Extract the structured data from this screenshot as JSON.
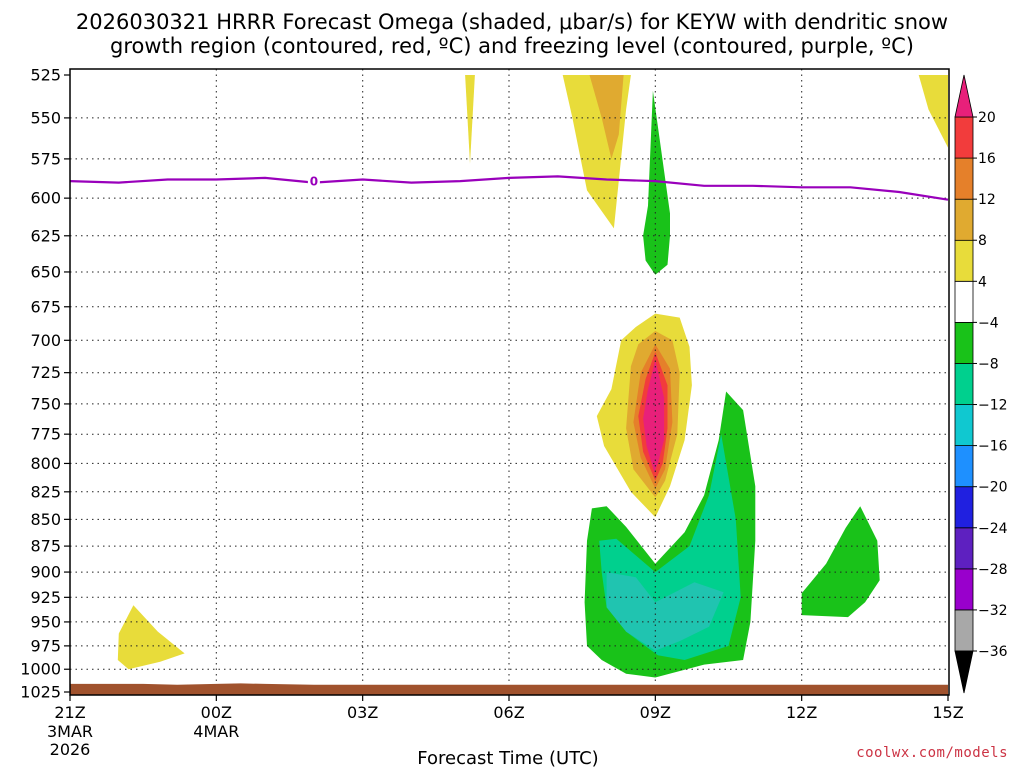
{
  "title": {
    "line1": "2026030321 HRRR Forecast Omega (shaded, μbar/s) for KEYW with dendritic snow",
    "line2": "growth region (contoured, red, ºC) and freezing level (contoured, purple, ºC)"
  },
  "credit": "coolwx.com/models",
  "colors": {
    "yellow": "#e8dc3a",
    "gold": "#e0aa30",
    "orange": "#e5802a",
    "red": "#f23c3c",
    "magenta": "#e8207a",
    "green": "#19c219",
    "mint": "#00d08e",
    "teal": "#20c4b0",
    "freezing_line": "#9900bb",
    "ground": "#a0522d"
  },
  "chart_data": {
    "type": "heatmap",
    "title": "2026030321 HRRR Forecast Omega (shaded, μbar/s) for KEYW with dendritic snow growth region (contoured, red, ºC) and freezing level (contoured, purple, ºC)",
    "xlabel": "Forecast Time (UTC)",
    "ylabel": "Pressure (mb)",
    "xlim_hours": [
      0,
      18
    ],
    "ylim_mb": [
      1025,
      525
    ],
    "x_ticks": [
      {
        "hour": 0,
        "label": "21Z",
        "sub1": "3MAR",
        "sub2": "2026"
      },
      {
        "hour": 3,
        "label": "00Z",
        "sub1": "4MAR",
        "sub2": ""
      },
      {
        "hour": 6,
        "label": "03Z",
        "sub1": "",
        "sub2": ""
      },
      {
        "hour": 9,
        "label": "06Z",
        "sub1": "",
        "sub2": ""
      },
      {
        "hour": 12,
        "label": "09Z",
        "sub1": "",
        "sub2": ""
      },
      {
        "hour": 15,
        "label": "12Z",
        "sub1": "",
        "sub2": ""
      },
      {
        "hour": 18,
        "label": "15Z",
        "sub1": "",
        "sub2": ""
      }
    ],
    "y_ticks": [
      525,
      550,
      575,
      600,
      625,
      650,
      675,
      700,
      725,
      750,
      775,
      800,
      825,
      850,
      875,
      900,
      925,
      950,
      975,
      1000,
      1025
    ],
    "colorbar": {
      "levels": [
        -36,
        -32,
        -28,
        -24,
        -20,
        -16,
        -12,
        -8,
        -4,
        4,
        8,
        12,
        16,
        20
      ],
      "colors": [
        "#a8a8a8",
        "#9900cc",
        "#5e20c0",
        "#2020e0",
        "#1e90ff",
        "#10c8d0",
        "#00d08e",
        "#19c219",
        "#ffffff",
        "#e8dc3a",
        "#e0aa30",
        "#e5802a",
        "#f23c3c",
        "#e8207a"
      ],
      "below_color": "#000000",
      "above_color": "#e8207a"
    },
    "freezing_level": {
      "label": "0",
      "points": [
        [
          0,
          589
        ],
        [
          1,
          590
        ],
        [
          2,
          588
        ],
        [
          3,
          588
        ],
        [
          4,
          587
        ],
        [
          5,
          590
        ],
        [
          6,
          588
        ],
        [
          7,
          590
        ],
        [
          8,
          589
        ],
        [
          9,
          587
        ],
        [
          10,
          586
        ],
        [
          11,
          588
        ],
        [
          12,
          589
        ],
        [
          13,
          592
        ],
        [
          14,
          592
        ],
        [
          15,
          593
        ],
        [
          16,
          593
        ],
        [
          17,
          596
        ],
        [
          18,
          601
        ]
      ]
    },
    "regions": [
      {
        "name": "rising-yellow-top-a",
        "level": 4,
        "color": "yellow",
        "points": [
          [
            8.1,
            525
          ],
          [
            8.3,
            525
          ],
          [
            8.2,
            578
          ]
        ]
      },
      {
        "name": "rising-yellow-top-b",
        "level": 4,
        "color": "yellow",
        "points": [
          [
            10.1,
            525
          ],
          [
            11.5,
            525
          ],
          [
            11.4,
            545
          ],
          [
            11.15,
            620
          ],
          [
            10.6,
            595
          ],
          [
            10.3,
            550
          ]
        ]
      },
      {
        "name": "rising-gold-top",
        "level": 8,
        "color": "gold",
        "points": [
          [
            10.65,
            525
          ],
          [
            11.35,
            525
          ],
          [
            11.25,
            560
          ],
          [
            11.1,
            575
          ],
          [
            10.9,
            550
          ]
        ]
      },
      {
        "name": "rising-yellow-right-top",
        "level": 4,
        "color": "yellow",
        "points": [
          [
            17.4,
            525
          ],
          [
            18,
            525
          ],
          [
            18,
            568
          ],
          [
            17.6,
            545
          ]
        ]
      },
      {
        "name": "sinking-green-top",
        "level": -4,
        "color": "green",
        "points": [
          [
            11.95,
            534
          ],
          [
            12.3,
            610
          ],
          [
            12.3,
            625
          ],
          [
            12.25,
            645
          ],
          [
            12.0,
            652
          ],
          [
            11.8,
            642
          ],
          [
            11.75,
            625
          ],
          [
            11.85,
            605
          ]
        ]
      },
      {
        "name": "sinking-green-low",
        "level": -4,
        "color": "green",
        "points": [
          [
            10.7,
            840
          ],
          [
            11.0,
            838
          ],
          [
            11.4,
            857
          ],
          [
            12.0,
            892
          ],
          [
            12.6,
            862
          ],
          [
            13.0,
            828
          ],
          [
            13.3,
            780
          ],
          [
            13.45,
            740
          ],
          [
            13.8,
            755
          ],
          [
            14.05,
            820
          ],
          [
            14.05,
            870
          ],
          [
            13.95,
            950
          ],
          [
            13.8,
            990
          ],
          [
            13.0,
            995
          ],
          [
            12.0,
            1009
          ],
          [
            11.4,
            1005
          ],
          [
            10.9,
            990
          ],
          [
            10.6,
            975
          ],
          [
            10.55,
            930
          ],
          [
            10.6,
            870
          ]
        ]
      },
      {
        "name": "sinking-mint-low",
        "level": -8,
        "color": "mint",
        "points": [
          [
            10.85,
            870
          ],
          [
            11.2,
            868
          ],
          [
            12.0,
            900
          ],
          [
            12.7,
            875
          ],
          [
            13.1,
            828
          ],
          [
            13.35,
            775
          ],
          [
            13.65,
            850
          ],
          [
            13.75,
            925
          ],
          [
            13.5,
            975
          ],
          [
            12.6,
            990
          ],
          [
            12.05,
            985
          ],
          [
            11.4,
            960
          ],
          [
            11.0,
            935
          ],
          [
            10.9,
            900
          ]
        ]
      },
      {
        "name": "sinking-teal-low",
        "level": -12,
        "color": "teal",
        "points": [
          [
            11.0,
            900
          ],
          [
            11.6,
            905
          ],
          [
            12.0,
            930
          ],
          [
            12.8,
            910
          ],
          [
            13.4,
            920
          ],
          [
            13.1,
            955
          ],
          [
            12.5,
            970
          ],
          [
            12.0,
            980
          ],
          [
            11.4,
            960
          ],
          [
            11.0,
            935
          ]
        ]
      },
      {
        "name": "sinking-green-right",
        "level": -4,
        "color": "green",
        "points": [
          [
            15.0,
            921
          ],
          [
            15.5,
            892
          ],
          [
            15.9,
            858
          ],
          [
            16.2,
            838
          ],
          [
            16.55,
            870
          ],
          [
            16.6,
            908
          ],
          [
            16.3,
            930
          ],
          [
            15.95,
            945
          ],
          [
            15.0,
            943
          ]
        ]
      },
      {
        "name": "rising-yellow-mid",
        "level": 4,
        "color": "yellow",
        "points": [
          [
            12.0,
            680
          ],
          [
            12.5,
            683
          ],
          [
            12.7,
            705
          ],
          [
            12.75,
            735
          ],
          [
            12.6,
            780
          ],
          [
            12.3,
            820
          ],
          [
            12.0,
            848
          ],
          [
            11.5,
            825
          ],
          [
            10.95,
            785
          ],
          [
            10.8,
            760
          ],
          [
            11.1,
            738
          ],
          [
            11.3,
            700
          ],
          [
            11.6,
            690
          ]
        ]
      },
      {
        "name": "rising-gold-mid",
        "level": 8,
        "color": "gold",
        "points": [
          [
            12.0,
            693
          ],
          [
            12.35,
            700
          ],
          [
            12.5,
            725
          ],
          [
            12.45,
            775
          ],
          [
            12.2,
            815
          ],
          [
            12.0,
            830
          ],
          [
            11.55,
            805
          ],
          [
            11.4,
            770
          ],
          [
            11.5,
            720
          ],
          [
            11.65,
            703
          ]
        ]
      },
      {
        "name": "rising-orange-mid",
        "level": 12,
        "color": "orange",
        "points": [
          [
            12.0,
            703
          ],
          [
            12.3,
            722
          ],
          [
            12.35,
            765
          ],
          [
            12.2,
            805
          ],
          [
            12.0,
            822
          ],
          [
            11.7,
            795
          ],
          [
            11.55,
            765
          ],
          [
            11.7,
            725
          ]
        ]
      },
      {
        "name": "rising-red-mid",
        "level": 16,
        "color": "red",
        "points": [
          [
            12.0,
            709
          ],
          [
            12.25,
            735
          ],
          [
            12.25,
            770
          ],
          [
            12.15,
            800
          ],
          [
            12.0,
            815
          ],
          [
            11.75,
            790
          ],
          [
            11.65,
            760
          ],
          [
            11.8,
            730
          ]
        ]
      },
      {
        "name": "rising-magenta-mid",
        "level": 20,
        "color": "magenta",
        "points": [
          [
            12.0,
            715
          ],
          [
            12.18,
            745
          ],
          [
            12.18,
            780
          ],
          [
            12.05,
            800
          ],
          [
            11.98,
            808
          ],
          [
            11.82,
            785
          ],
          [
            11.75,
            762
          ],
          [
            11.85,
            738
          ]
        ]
      },
      {
        "name": "rising-yellow-low-left",
        "level": 4,
        "color": "yellow",
        "points": [
          [
            1.3,
            933
          ],
          [
            1.8,
            960
          ],
          [
            2.35,
            983
          ],
          [
            1.85,
            992
          ],
          [
            1.2,
            1000
          ],
          [
            0.98,
            990
          ],
          [
            1.0,
            962
          ]
        ]
      }
    ],
    "surface_terrain": "below 1018 mb"
  }
}
